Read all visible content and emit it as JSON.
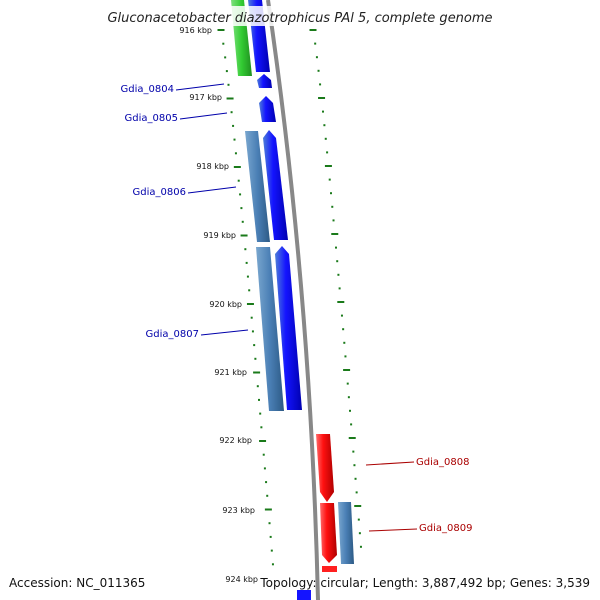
{
  "title": "Gluconacetobacter diazotrophicus PAl 5, complete genome",
  "accession": "Accession: NC_011365",
  "topology": "Topology: circular; Length: 3,887,492 bp; Genes: 3,539",
  "ticks": [
    "916 kbp",
    "917 kbp",
    "918 kbp",
    "919 kbp",
    "920 kbp",
    "921 kbp",
    "922 kbp",
    "923 kbp",
    "924 kbp"
  ],
  "genes": [
    {
      "label": "Gdia_0804",
      "strand": "left",
      "color": "#0000cc"
    },
    {
      "label": "Gdia_0805",
      "strand": "left",
      "color": "#0000cc"
    },
    {
      "label": "Gdia_0806",
      "strand": "left",
      "color": "#0000cc"
    },
    {
      "label": "Gdia_0807",
      "strand": "left",
      "color": "#0000cc"
    },
    {
      "label": "Gdia_0808",
      "strand": "right",
      "color": "#cc0000"
    },
    {
      "label": "Gdia_0809",
      "strand": "right",
      "color": "#cc0000"
    }
  ],
  "colors": {
    "forward_cds": "#0000ff",
    "reverse_cds": "#ff0000",
    "gene_bar": "#4a7fb5",
    "rna": "#33cc33",
    "backbone": "#888888",
    "ticks": "#1a7a1a"
  }
}
